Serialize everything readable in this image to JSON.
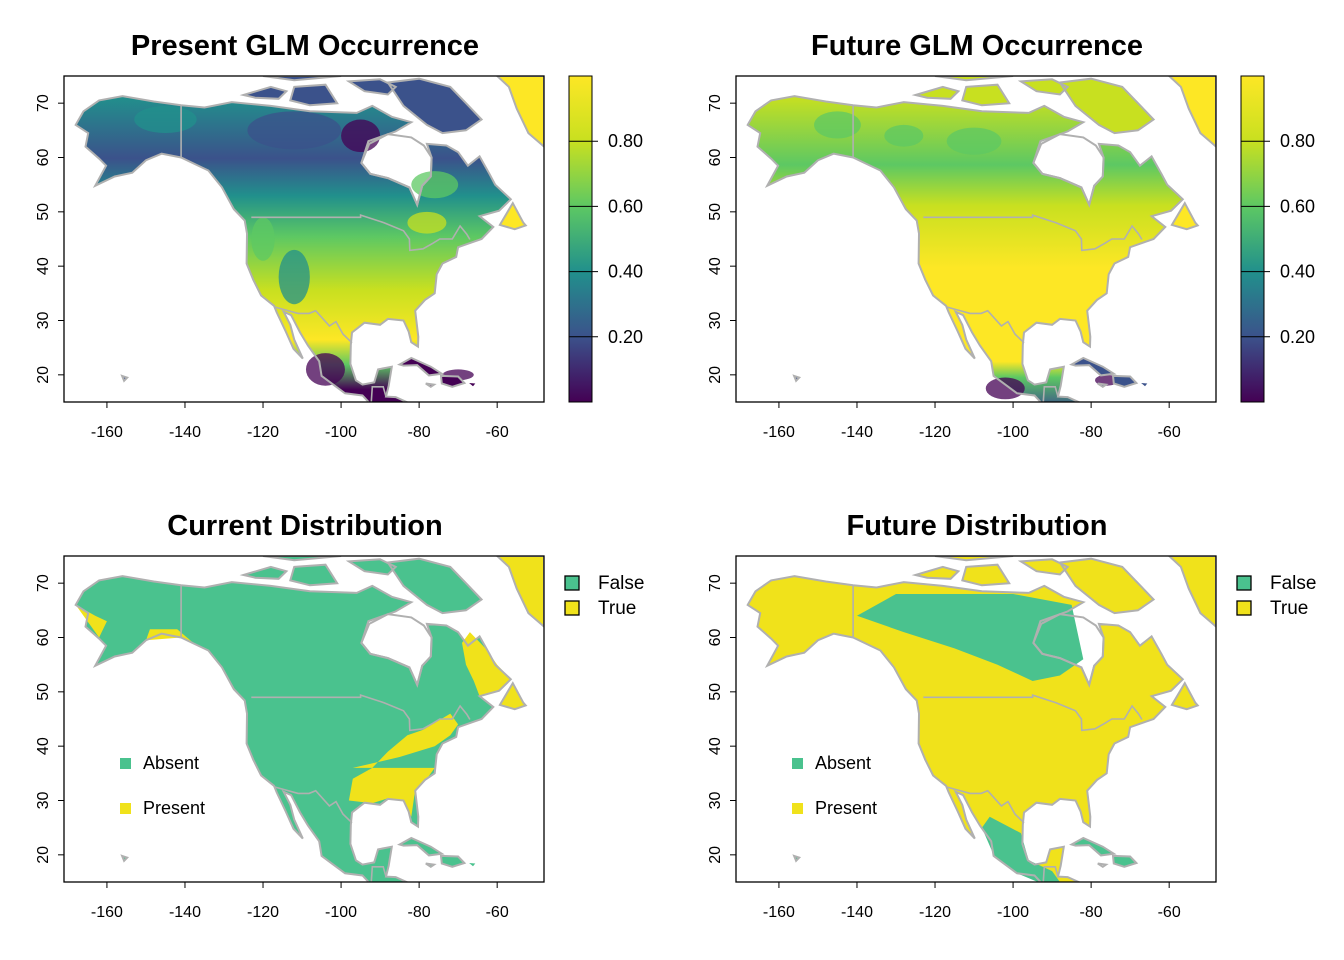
{
  "colors": {
    "viridis": [
      "#440154",
      "#3b528b",
      "#21908c",
      "#5dc863",
      "#c8e020",
      "#fde725"
    ],
    "absent": "#4ac28e",
    "present": "#f0e21b",
    "border": "#b0b0b0"
  },
  "panels": [
    {
      "id": "present-glm",
      "title": "Present GLM Occurrence",
      "kind": "continuous",
      "colorbar": {
        "labels": [
          "0.80",
          "0.60",
          "0.40",
          "0.20"
        ],
        "values": [
          0.8,
          0.6,
          0.4,
          0.2
        ],
        "range": [
          0.0,
          1.0
        ]
      }
    },
    {
      "id": "future-glm",
      "title": "Future GLM Occurrence",
      "kind": "continuous",
      "colorbar": {
        "labels": [
          "0.80",
          "0.60",
          "0.40",
          "0.20"
        ],
        "values": [
          0.8,
          0.6,
          0.4,
          0.2
        ],
        "range": [
          0.0,
          1.0
        ]
      }
    },
    {
      "id": "current-dist",
      "title": "Current Distribution",
      "kind": "binary",
      "legend": [
        "False",
        "True"
      ],
      "inset_legend": [
        "Absent",
        "Present"
      ]
    },
    {
      "id": "future-dist",
      "title": "Future Distribution",
      "kind": "binary",
      "legend": [
        "False",
        "True"
      ],
      "inset_legend": [
        "Absent",
        "Present"
      ]
    }
  ],
  "axes": {
    "x_ticks": [
      -160,
      -140,
      -120,
      -100,
      -80,
      -60
    ],
    "x_tick_labels": [
      "-160",
      "-140",
      "-120",
      "-100",
      "-80",
      "-60"
    ],
    "y_ticks": [
      20,
      30,
      40,
      50,
      60,
      70
    ],
    "y_tick_labels": [
      "20",
      "30",
      "40",
      "50",
      "60",
      "70"
    ],
    "xlim": [
      -171,
      -48
    ],
    "ylim": [
      15,
      75
    ]
  }
}
